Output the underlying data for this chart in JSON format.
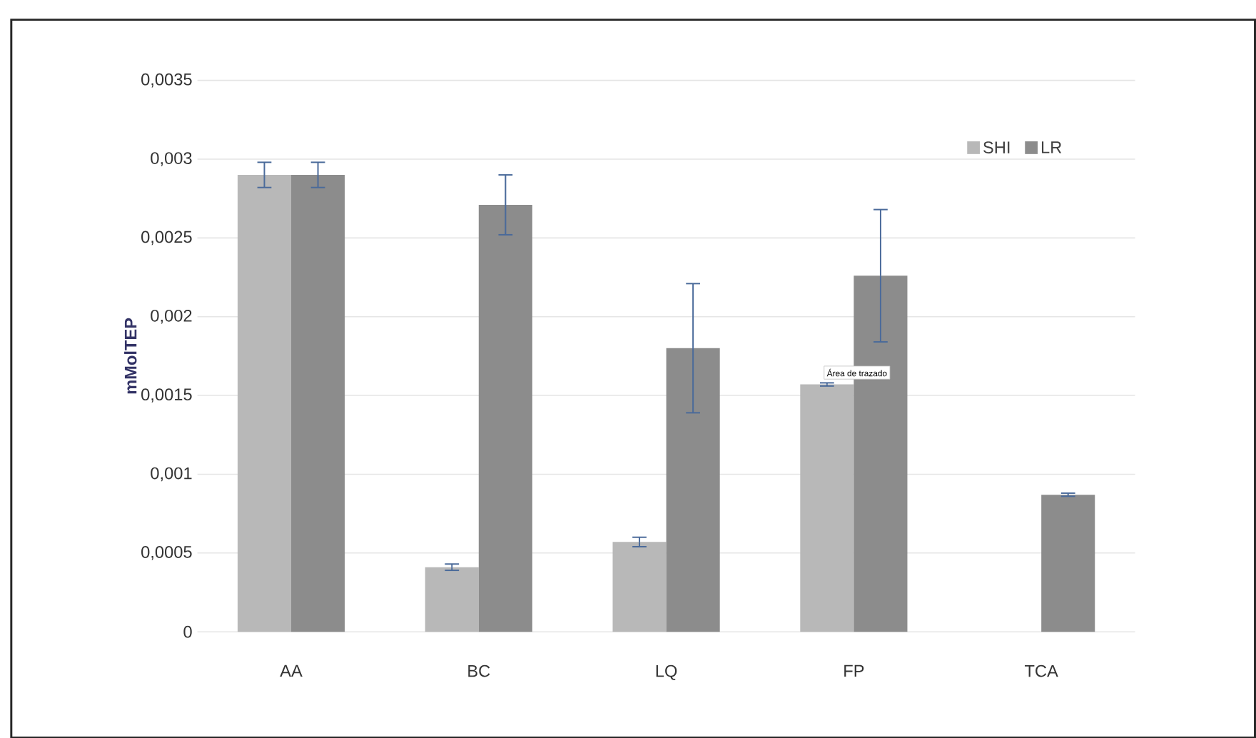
{
  "chart_data": {
    "type": "bar",
    "ylabel": "mMolTEP",
    "categories": [
      "AA",
      "BC",
      "LQ",
      "FP",
      "TCA"
    ],
    "series": [
      {
        "name": "SHI",
        "color": "#b8b8b8",
        "values": [
          0.0029,
          0.00041,
          0.00057,
          0.00157,
          null
        ],
        "errors": [
          8e-05,
          2e-05,
          3e-05,
          1e-05,
          null
        ]
      },
      {
        "name": "LR",
        "color": "#8c8c8c",
        "values": [
          0.0029,
          0.00271,
          0.0018,
          0.00226,
          0.00087
        ],
        "errors": [
          8e-05,
          0.00019,
          0.00041,
          0.00042,
          1e-05
        ]
      }
    ],
    "ylim": [
      0,
      0.0035
    ],
    "yticks": [
      {
        "value": 0,
        "label": "0"
      },
      {
        "value": 0.0005,
        "label": "0,0005"
      },
      {
        "value": 0.001,
        "label": "0,001"
      },
      {
        "value": 0.0015,
        "label": "0,0015"
      },
      {
        "value": 0.002,
        "label": "0,002"
      },
      {
        "value": 0.0025,
        "label": "0,0025"
      },
      {
        "value": 0.003,
        "label": "0,003"
      },
      {
        "value": 0.0035,
        "label": "0,0035"
      }
    ],
    "grid": "y",
    "legend": "top right",
    "annotations": [
      "Área de trazado"
    ]
  }
}
